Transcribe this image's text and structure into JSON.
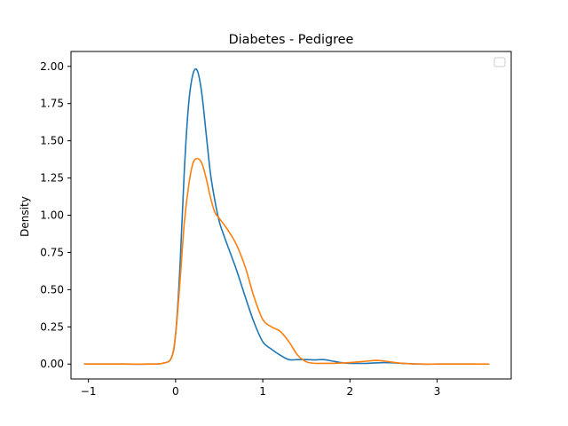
{
  "chart_data": {
    "type": "line",
    "title": "Diabetes - Pedigree",
    "xlabel": "",
    "ylabel": "Density",
    "xlim": [
      -1.2,
      3.85
    ],
    "ylim": [
      -0.1,
      2.1
    ],
    "xticks": [
      -1,
      0,
      1,
      2,
      3
    ],
    "yticks": [
      0.0,
      0.25,
      0.5,
      0.75,
      1.0,
      1.25,
      1.5,
      1.75,
      2.0
    ],
    "xtick_labels": [
      "−1",
      "0",
      "1",
      "2",
      "3"
    ],
    "ytick_labels": [
      "0.00",
      "0.25",
      "0.50",
      "0.75",
      "1.00",
      "1.25",
      "1.50",
      "1.75",
      "2.00"
    ],
    "grid": false,
    "legend": {
      "placement": "top-right",
      "entries": []
    },
    "series": [
      {
        "color": "#1f77b4",
        "x": [
          -1.05,
          -0.6,
          -0.3,
          -0.15,
          -0.05,
          0.0,
          0.05,
          0.1,
          0.15,
          0.2,
          0.25,
          0.3,
          0.35,
          0.4,
          0.45,
          0.5,
          0.55,
          0.6,
          0.7,
          0.8,
          0.9,
          1.0,
          1.1,
          1.2,
          1.3,
          1.4,
          1.5,
          1.6,
          1.7,
          1.8,
          1.9,
          2.0,
          2.2,
          2.4,
          2.6,
          2.8,
          3.0,
          3.2,
          3.45
        ],
        "y": [
          0.0,
          0.0,
          0.0,
          0.005,
          0.04,
          0.2,
          0.65,
          1.3,
          1.75,
          1.95,
          1.97,
          1.82,
          1.55,
          1.28,
          1.1,
          0.96,
          0.87,
          0.79,
          0.63,
          0.45,
          0.28,
          0.15,
          0.1,
          0.06,
          0.03,
          0.03,
          0.03,
          0.028,
          0.03,
          0.02,
          0.01,
          0.005,
          0.005,
          0.01,
          0.005,
          0.0,
          0.0,
          0.0,
          0.0
        ]
      },
      {
        "color": "#ff7f0e",
        "x": [
          -1.05,
          -0.6,
          -0.3,
          -0.15,
          -0.05,
          0.0,
          0.05,
          0.1,
          0.15,
          0.2,
          0.25,
          0.3,
          0.35,
          0.4,
          0.45,
          0.5,
          0.6,
          0.7,
          0.8,
          0.9,
          1.0,
          1.1,
          1.2,
          1.3,
          1.4,
          1.5,
          1.6,
          1.7,
          1.8,
          2.0,
          2.2,
          2.3,
          2.4,
          2.6,
          2.8,
          3.0,
          3.3,
          3.6
        ],
        "y": [
          0.0,
          0.0,
          0.0,
          0.005,
          0.04,
          0.2,
          0.55,
          0.95,
          1.2,
          1.35,
          1.38,
          1.35,
          1.25,
          1.12,
          1.02,
          0.98,
          0.9,
          0.8,
          0.65,
          0.45,
          0.3,
          0.25,
          0.22,
          0.15,
          0.06,
          0.015,
          0.005,
          0.005,
          0.005,
          0.01,
          0.02,
          0.025,
          0.02,
          0.005,
          0.0,
          0.0,
          0.0,
          0.0
        ]
      }
    ]
  }
}
